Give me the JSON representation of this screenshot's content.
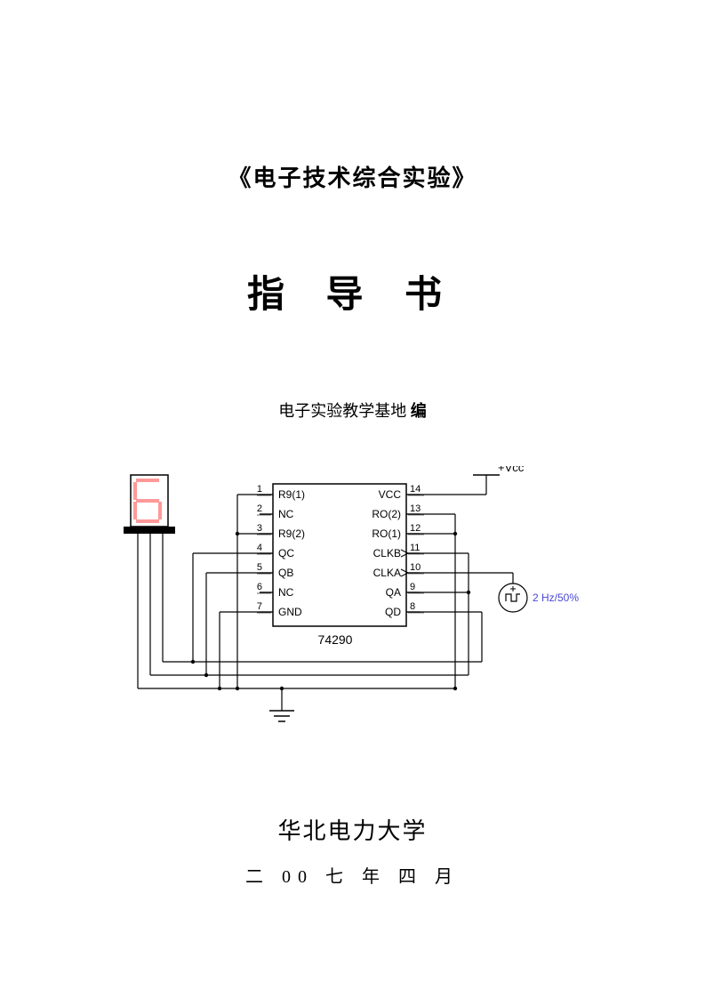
{
  "title1": "《电子技术综合实验》",
  "title2": "指 导 书",
  "author_prefix": "电子实验教学基地",
  "author_suffix": " 编",
  "university": "华北电力大学",
  "date": "二 00 七 年 四 月",
  "diagram": {
    "type": "circuit-schematic",
    "chip_label": "74290",
    "vcc_label": "+Vcc",
    "signal_label": "2 Hz/50%",
    "signal_color": "#4848d8",
    "line_color": "#000000",
    "bg_color": "#ffffff",
    "display_digit_color": "#ff9999",
    "font_size_pin": 12,
    "pins_left": [
      {
        "num": "1",
        "name": "R9(1)"
      },
      {
        "num": "2",
        "name": "NC"
      },
      {
        "num": "3",
        "name": "R9(2)"
      },
      {
        "num": "4",
        "name": "QC"
      },
      {
        "num": "5",
        "name": "QB"
      },
      {
        "num": "6",
        "name": "NC"
      },
      {
        "num": "7",
        "name": "GND"
      }
    ],
    "pins_right": [
      {
        "num": "14",
        "name": "VCC"
      },
      {
        "num": "13",
        "name": "RO(2)"
      },
      {
        "num": "12",
        "name": "RO(1)"
      },
      {
        "num": "11",
        "name": "CLKB"
      },
      {
        "num": "10",
        "name": "CLKA"
      },
      {
        "num": "9",
        "name": "QA"
      },
      {
        "num": "8",
        "name": "QD"
      }
    ]
  }
}
